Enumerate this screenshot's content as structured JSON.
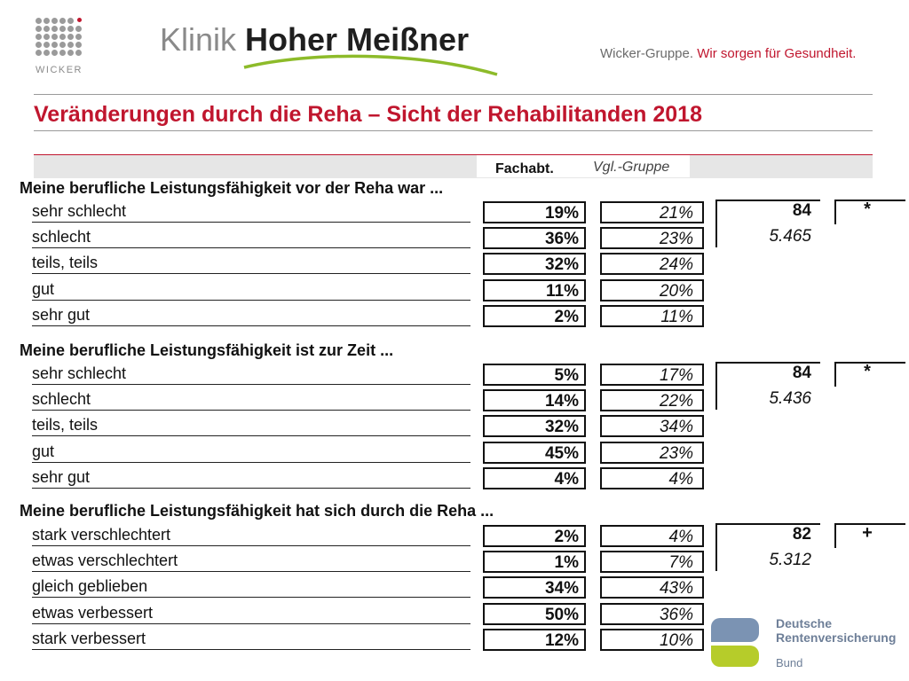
{
  "header": {
    "logo_text": "WICKER",
    "clinic_prefix": "Klinik",
    "clinic_name": "Hoher Meißner",
    "tagline_prefix": "Wicker-Gruppe.",
    "tagline_accent": "Wir sorgen für Gesundheit.",
    "colors": {
      "accent": "#c0162e",
      "green": "#8dbb2a",
      "grey": "#8a8a8a"
    }
  },
  "title": "Veränderungen durch die Reha – Sicht der Rehabilitanden 2018",
  "columns": {
    "fach": "Fachabt.",
    "vgl": "Vgl.-Gruppe"
  },
  "questions": [
    {
      "title": "Meine berufliche Leistungsfähigkeit vor der Reha war ...",
      "rows": [
        {
          "label": "sehr schlecht",
          "fach": "19%",
          "vgl": "21%"
        },
        {
          "label": "schlecht",
          "fach": "36%",
          "vgl": "23%"
        },
        {
          "label": "teils, teils",
          "fach": "32%",
          "vgl": "24%"
        },
        {
          "label": "gut",
          "fach": "11%",
          "vgl": "20%"
        },
        {
          "label": "sehr gut",
          "fach": "2%",
          "vgl": "11%"
        }
      ],
      "n_fach": "84",
      "n_vgl": "5.465",
      "sig": "*"
    },
    {
      "title": "Meine berufliche Leistungsfähigkeit ist zur Zeit ...",
      "rows": [
        {
          "label": "sehr schlecht",
          "fach": "5%",
          "vgl": "17%"
        },
        {
          "label": "schlecht",
          "fach": "14%",
          "vgl": "22%"
        },
        {
          "label": "teils, teils",
          "fach": "32%",
          "vgl": "34%"
        },
        {
          "label": "gut",
          "fach": "45%",
          "vgl": "23%"
        },
        {
          "label": "sehr gut",
          "fach": "4%",
          "vgl": "4%"
        }
      ],
      "n_fach": "84",
      "n_vgl": "5.436",
      "sig": "*"
    },
    {
      "title": "Meine berufliche Leistungsfähigkeit hat sich durch die Reha ...",
      "rows": [
        {
          "label": "stark verschlechtert",
          "fach": "2%",
          "vgl": "4%"
        },
        {
          "label": "etwas verschlechtert",
          "fach": "1%",
          "vgl": "7%"
        },
        {
          "label": "gleich geblieben",
          "fach": "34%",
          "vgl": "43%"
        },
        {
          "label": "etwas verbessert",
          "fach": "50%",
          "vgl": "36%"
        },
        {
          "label": "stark verbessert",
          "fach": "12%",
          "vgl": "10%"
        }
      ],
      "n_fach": "82",
      "n_vgl": "5.312",
      "sig": "+"
    }
  ],
  "footer_logo": {
    "line1": "Deutsche",
    "line2": "Rentenversicherung",
    "line3": "Bund"
  }
}
